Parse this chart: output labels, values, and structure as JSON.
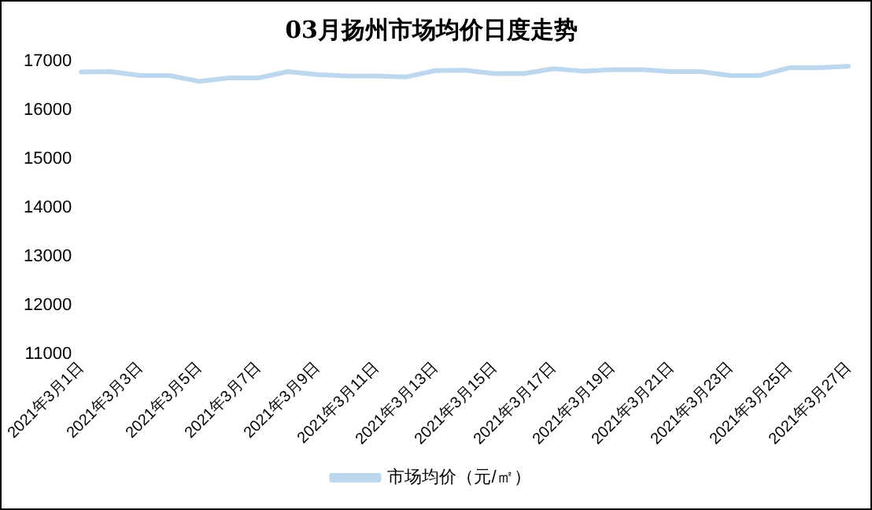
{
  "chart_data": {
    "type": "line",
    "title": "03月扬州市场均价日度走势",
    "categories": [
      "2021年3月1日",
      null,
      "2021年3月3日",
      null,
      "2021年3月5日",
      null,
      "2021年3月7日",
      null,
      "2021年3月9日",
      null,
      "2021年3月11日",
      null,
      "2021年3月13日",
      null,
      "2021年3月15日",
      null,
      "2021年3月17日",
      null,
      "2021年3月19日",
      null,
      "2021年3月21日",
      null,
      "2021年3月23日",
      null,
      "2021年3月25日",
      null,
      "2021年3月27日"
    ],
    "series": [
      {
        "name": "市场均价（元/㎡）",
        "color": "#bdd7ee",
        "values": [
          16780,
          16790,
          16710,
          16710,
          16590,
          16660,
          16660,
          16790,
          16730,
          16700,
          16700,
          16680,
          16810,
          16820,
          16750,
          16750,
          16850,
          16800,
          16830,
          16830,
          16790,
          16790,
          16710,
          16710,
          16870,
          16870,
          16900
        ]
      }
    ],
    "ylim": [
      11000,
      17000
    ],
    "yticks": [
      11000,
      12000,
      13000,
      14000,
      15000,
      16000,
      17000
    ],
    "grid": false,
    "legend": "bottom",
    "marker": "none",
    "line_style": "solid"
  }
}
